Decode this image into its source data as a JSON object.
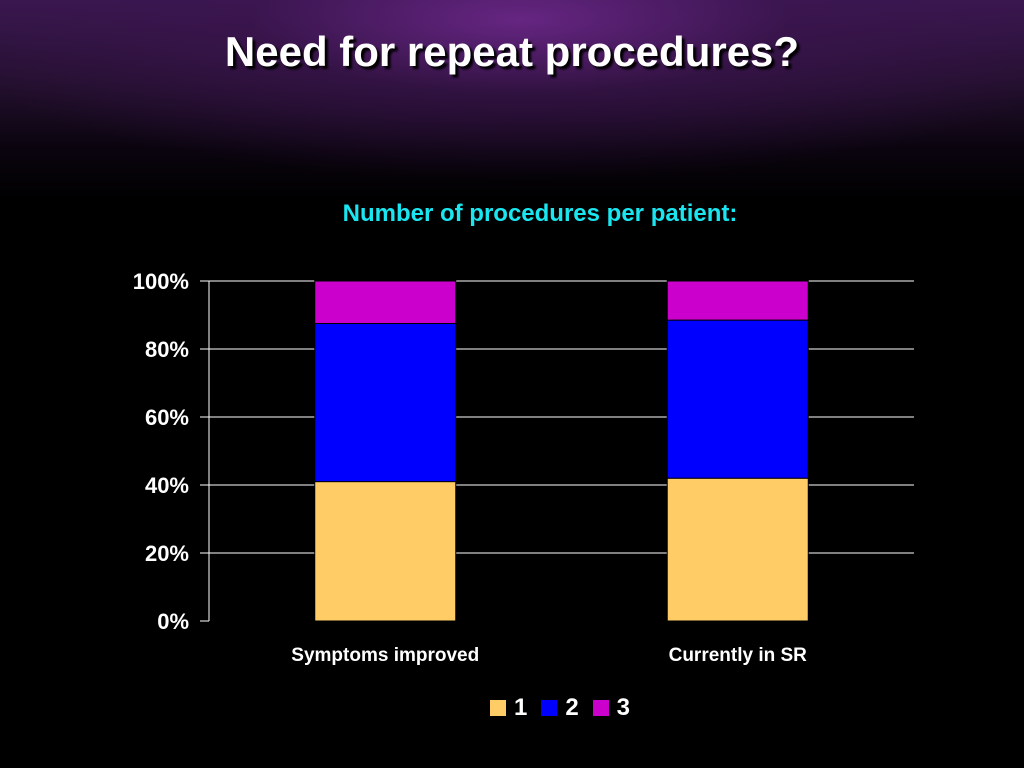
{
  "slide": {
    "title": "Need for repeat procedures?"
  },
  "chart_data": {
    "type": "bar",
    "stacked": true,
    "title": "Number of procedures per patient:",
    "categories": [
      "Symptoms improved",
      "Currently in SR"
    ],
    "series": [
      {
        "name": "1",
        "color": "#ffcc66",
        "values": [
          41,
          42
        ]
      },
      {
        "name": "2",
        "color": "#0000ff",
        "values": [
          46.5,
          46.5
        ]
      },
      {
        "name": "3",
        "color": "#cc00cc",
        "values": [
          12.5,
          11.5
        ]
      }
    ],
    "ylim": [
      0,
      100
    ],
    "yticks": [
      "0%",
      "20%",
      "40%",
      "60%",
      "80%",
      "100%"
    ],
    "grid": true,
    "legend_position": "bottom"
  }
}
